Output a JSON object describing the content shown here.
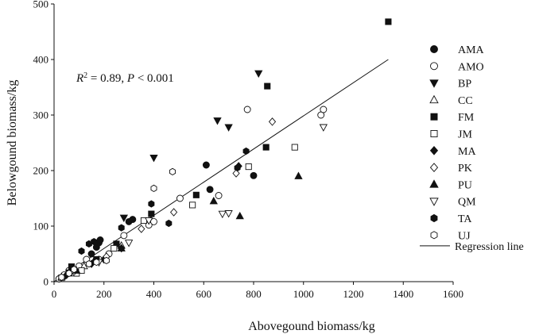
{
  "chart_data": {
    "type": "scatter",
    "xlabel": "Abovegound biomass/kg",
    "ylabel": "Belowgound biomass/kg",
    "xlim": [
      0,
      1600
    ],
    "ylim": [
      0,
      500
    ],
    "xticks": [
      0,
      200,
      400,
      600,
      800,
      1000,
      1200,
      1400,
      1600
    ],
    "yticks": [
      0,
      100,
      200,
      300,
      400,
      500
    ],
    "grid": false,
    "legend_placement": "right",
    "annotation": {
      "r2": "0.89",
      "p": "0.001"
    },
    "regression_line": {
      "label": "Regression line",
      "x": [
        0,
        1340
      ],
      "y": [
        0,
        400
      ]
    },
    "series": [
      {
        "name": "AMA",
        "marker": "circle",
        "fill": "#111111",
        "points": [
          [
            20,
            5
          ],
          [
            40,
            10
          ],
          [
            60,
            18
          ],
          [
            100,
            25
          ],
          [
            150,
            50
          ],
          [
            170,
            62
          ],
          [
            180,
            70
          ],
          [
            185,
            75
          ],
          [
            300,
            108
          ],
          [
            315,
            112
          ],
          [
            610,
            210
          ],
          [
            625,
            166
          ],
          [
            800,
            191
          ]
        ]
      },
      {
        "name": "AMO",
        "marker": "circle",
        "fill": "#ffffff",
        "points": [
          [
            20,
            5
          ],
          [
            40,
            12
          ],
          [
            60,
            20
          ],
          [
            100,
            28
          ],
          [
            130,
            40
          ],
          [
            180,
            40
          ],
          [
            220,
            50
          ],
          [
            280,
            83
          ],
          [
            380,
            102
          ],
          [
            400,
            108
          ],
          [
            505,
            150
          ],
          [
            660,
            155
          ],
          [
            775,
            310
          ],
          [
            1070,
            300
          ],
          [
            1080,
            310
          ]
        ]
      },
      {
        "name": "BP",
        "marker": "triangle-down",
        "fill": "#111111",
        "points": [
          [
            280,
            115
          ],
          [
            400,
            223
          ],
          [
            655,
            290
          ],
          [
            700,
            278
          ],
          [
            820,
            375
          ]
        ]
      },
      {
        "name": "CC",
        "marker": "triangle-up",
        "fill": "#ffffff",
        "points": [
          [
            30,
            8
          ],
          [
            60,
            15
          ],
          [
            120,
            28
          ],
          [
            270,
            65
          ]
        ]
      },
      {
        "name": "FM",
        "marker": "square",
        "fill": "#111111",
        "points": [
          [
            60,
            16
          ],
          [
            70,
            27
          ],
          [
            170,
            40
          ],
          [
            250,
            68
          ],
          [
            390,
            122
          ],
          [
            570,
            156
          ],
          [
            850,
            242
          ],
          [
            855,
            352
          ],
          [
            1340,
            468
          ]
        ]
      },
      {
        "name": "JM",
        "marker": "square",
        "fill": "#ffffff",
        "points": [
          [
            30,
            7
          ],
          [
            90,
            15
          ],
          [
            110,
            20
          ],
          [
            240,
            60
          ],
          [
            360,
            110
          ],
          [
            555,
            138
          ],
          [
            780,
            207
          ],
          [
            965,
            242
          ]
        ]
      },
      {
        "name": "MA",
        "marker": "diamond",
        "fill": "#111111",
        "points": [
          [
            50,
            12
          ],
          [
            150,
            32
          ],
          [
            200,
            40
          ],
          [
            270,
            60
          ],
          [
            740,
            208
          ]
        ]
      },
      {
        "name": "PK",
        "marker": "diamond",
        "fill": "#ffffff",
        "points": [
          [
            80,
            18
          ],
          [
            210,
            45
          ],
          [
            350,
            95
          ],
          [
            480,
            125
          ],
          [
            730,
            195
          ],
          [
            875,
            288
          ]
        ]
      },
      {
        "name": "PU",
        "marker": "triangle-up",
        "fill": "#111111",
        "points": [
          [
            90,
            20
          ],
          [
            160,
            37
          ],
          [
            270,
            60
          ],
          [
            640,
            145
          ],
          [
            745,
            118
          ],
          [
            980,
            190
          ]
        ]
      },
      {
        "name": "QM",
        "marker": "triangle-down",
        "fill": "#ffffff",
        "points": [
          [
            180,
            35
          ],
          [
            300,
            70
          ],
          [
            380,
            110
          ],
          [
            675,
            122
          ],
          [
            700,
            123
          ],
          [
            1080,
            278
          ]
        ]
      },
      {
        "name": "TA",
        "marker": "hexagon",
        "fill": "#111111",
        "points": [
          [
            110,
            55
          ],
          [
            140,
            68
          ],
          [
            160,
            72
          ],
          [
            270,
            97
          ],
          [
            390,
            140
          ],
          [
            460,
            105
          ],
          [
            735,
            205
          ],
          [
            770,
            235
          ]
        ]
      },
      {
        "name": "UJ",
        "marker": "hexagon",
        "fill": "#ffffff",
        "points": [
          [
            30,
            8
          ],
          [
            60,
            15
          ],
          [
            80,
            22
          ],
          [
            140,
            32
          ],
          [
            170,
            35
          ],
          [
            210,
            38
          ],
          [
            400,
            168
          ],
          [
            475,
            198
          ]
        ]
      }
    ]
  }
}
